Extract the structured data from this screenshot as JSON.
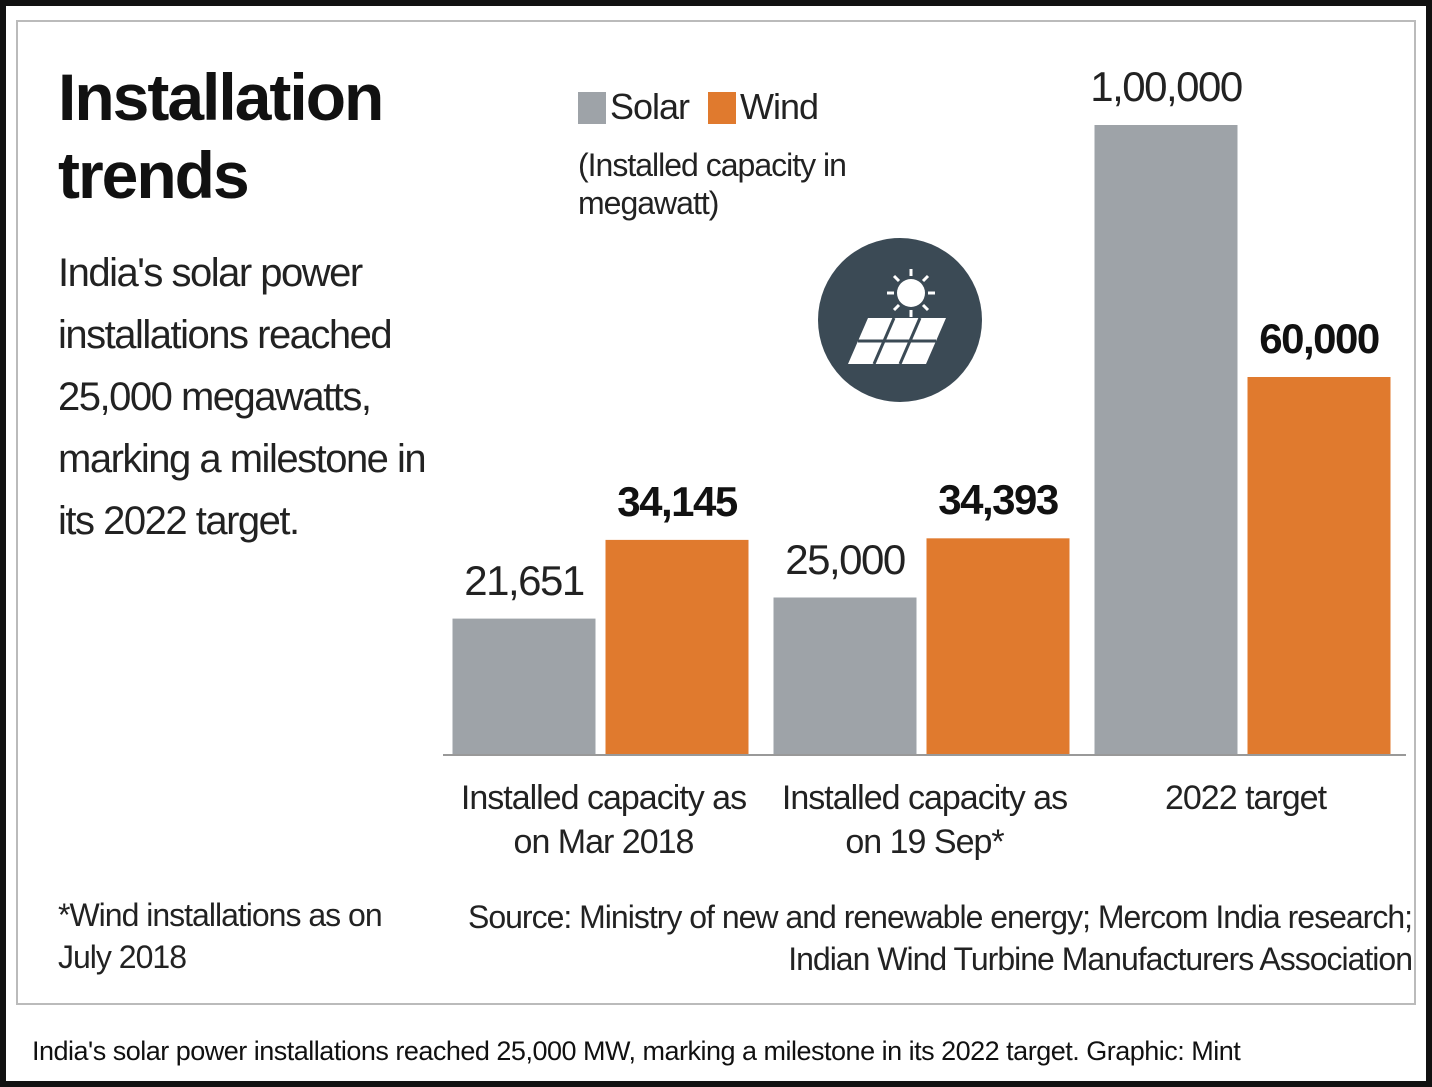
{
  "chart_data": {
    "type": "bar",
    "title": "Installation trends",
    "subtitle": "India's solar power installations reached 25,000 megawatts, marking a milestone in its 2022 target.",
    "unit_note": "(Installed capacity in megawatt)",
    "categories": [
      "Installed capacity as on Mar 2018",
      "Installed capacity as on 19 Sep*",
      "2022 target"
    ],
    "series": [
      {
        "name": "Solar",
        "color": "#9ea3a8",
        "values": [
          21651,
          25000,
          100000
        ],
        "value_labels": [
          "21,651",
          "25,000",
          "1,00,000"
        ]
      },
      {
        "name": "Wind",
        "color": "#e07a2e",
        "values": [
          34145,
          34393,
          60000
        ],
        "value_labels": [
          "34,145",
          "34,393",
          "60,000"
        ]
      }
    ],
    "ylim": [
      0,
      100000
    ],
    "footnote": "*Wind installations as on July 2018",
    "source": "Source: Ministry of new and renewable energy; Mercom India research; Indian Wind Turbine Manufacturers Association",
    "caption": "India's solar power installations reached 25,000 MW, marking a milestone in its 2022 target. Graphic: Mint"
  }
}
